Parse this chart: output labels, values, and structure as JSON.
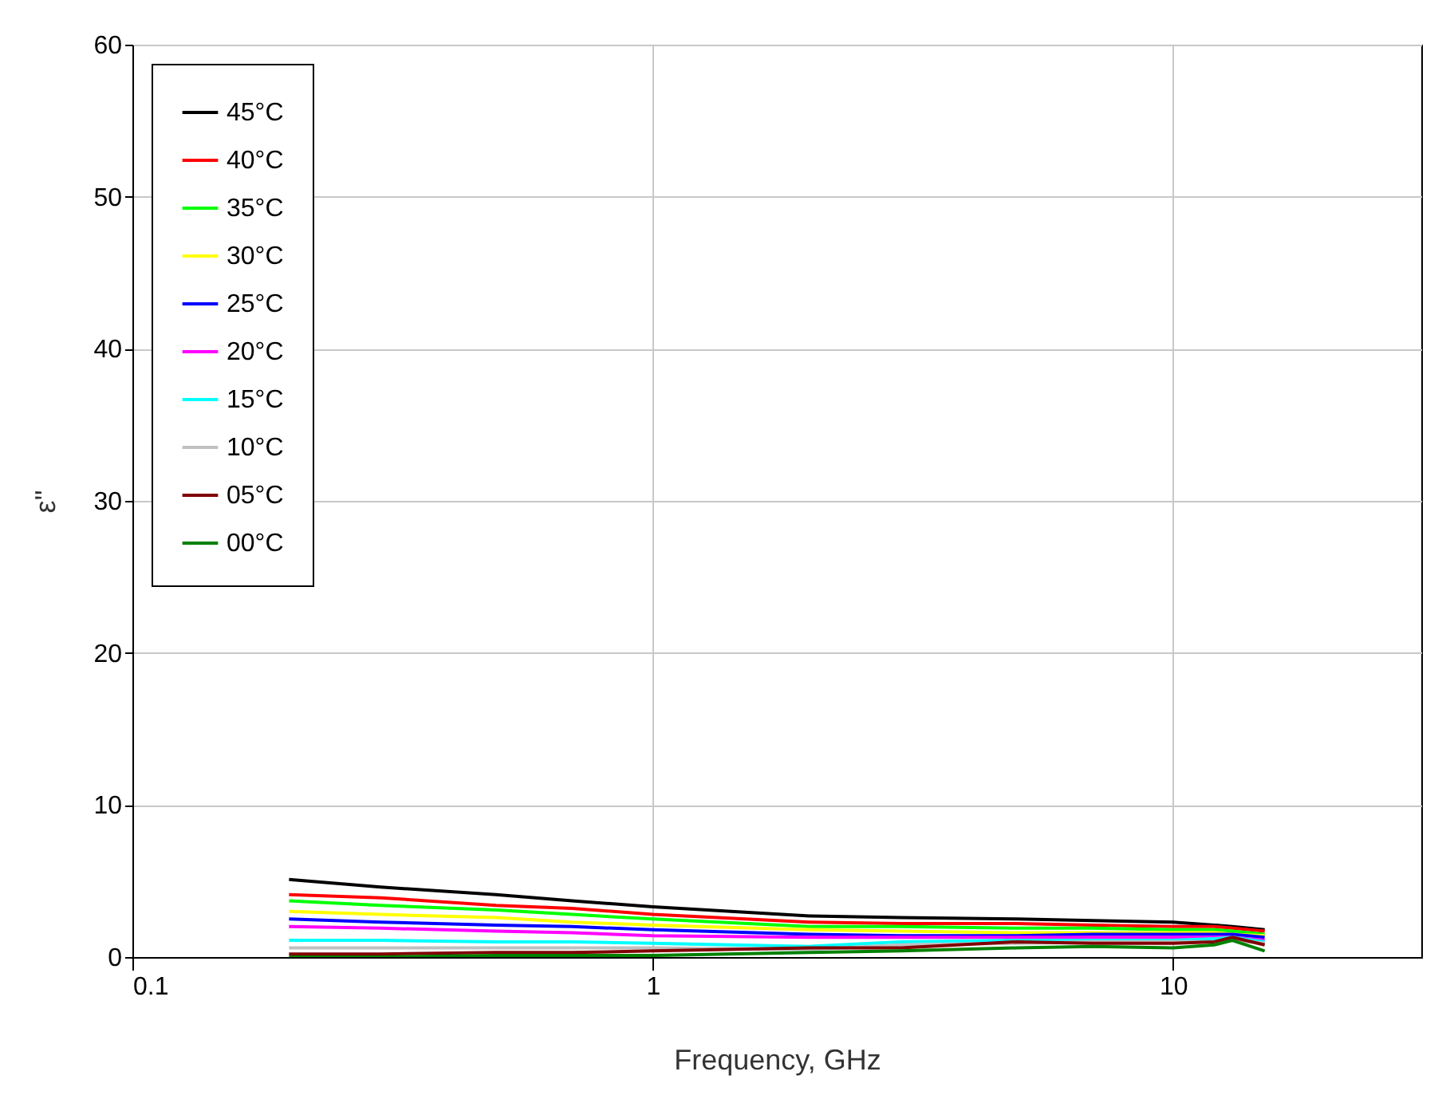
{
  "chart_data": {
    "type": "line",
    "xlabel": "Frequency, GHz",
    "ylabel": "ε\"",
    "log": "x",
    "xlim": [
      0.1,
      30
    ],
    "xticks": [
      0.1,
      1,
      10
    ],
    "ylim": [
      0,
      60
    ],
    "yticks": [
      0,
      10,
      20,
      30,
      40,
      50,
      60
    ],
    "grid": true,
    "legend": "top left",
    "marker": "none",
    "line_style": "solid",
    "x": [
      0.2,
      0.3,
      0.5,
      0.7,
      1,
      2,
      3,
      5,
      7,
      10,
      12,
      13,
      15
    ],
    "series": [
      {
        "name": "45°C",
        "color": "#000000",
        "values": [
          5.1,
          4.6,
          4.1,
          3.7,
          3.3,
          2.7,
          2.6,
          2.5,
          2.4,
          2.3,
          2.1,
          2.0,
          1.8
        ]
      },
      {
        "name": "40°C",
        "color": "#ff0000",
        "values": [
          4.1,
          3.9,
          3.4,
          3.2,
          2.8,
          2.3,
          2.2,
          2.2,
          2.1,
          2.0,
          2.0,
          1.9,
          1.7
        ]
      },
      {
        "name": "35°C",
        "color": "#00ff00",
        "values": [
          3.7,
          3.4,
          3.1,
          2.8,
          2.5,
          2.0,
          2.0,
          1.9,
          1.9,
          1.8,
          1.8,
          1.7,
          1.5
        ]
      },
      {
        "name": "30°C",
        "color": "#ffff00",
        "values": [
          3.0,
          2.8,
          2.6,
          2.3,
          2.1,
          1.8,
          1.7,
          1.6,
          1.6,
          1.6,
          1.6,
          1.5,
          1.4
        ]
      },
      {
        "name": "25°C",
        "color": "#0000ff",
        "values": [
          2.5,
          2.3,
          2.1,
          2.0,
          1.8,
          1.5,
          1.4,
          1.4,
          1.5,
          1.5,
          1.5,
          1.5,
          1.3
        ]
      },
      {
        "name": "20°C",
        "color": "#ff00ff",
        "values": [
          2.0,
          1.9,
          1.7,
          1.6,
          1.4,
          1.3,
          1.3,
          1.3,
          1.3,
          1.3,
          1.3,
          1.3,
          1.1
        ]
      },
      {
        "name": "15°C",
        "color": "#00ffff",
        "values": [
          1.1,
          1.1,
          1.0,
          1.0,
          0.9,
          0.7,
          1.0,
          1.1,
          1.1,
          1.1,
          1.2,
          1.3,
          1.0
        ]
      },
      {
        "name": "10°C",
        "color": "#c0c0c0",
        "values": [
          0.6,
          0.6,
          0.6,
          0.6,
          0.6,
          0.5,
          0.8,
          0.9,
          1.0,
          1.0,
          1.0,
          1.1,
          0.9
        ]
      },
      {
        "name": "05°C",
        "color": "#800000",
        "values": [
          0.2,
          0.2,
          0.3,
          0.3,
          0.4,
          0.6,
          0.6,
          1.0,
          0.9,
          0.9,
          1.0,
          1.3,
          0.8
        ]
      },
      {
        "name": "00°C",
        "color": "#008000",
        "values": [
          0.0,
          0.0,
          0.1,
          0.1,
          0.1,
          0.3,
          0.4,
          0.6,
          0.7,
          0.6,
          0.8,
          1.1,
          0.4
        ]
      }
    ]
  }
}
